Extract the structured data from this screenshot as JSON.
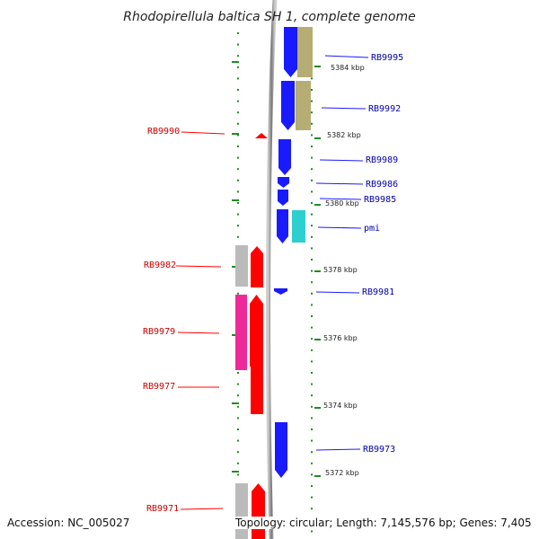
{
  "title": "Rhodopirellula baltica SH 1, complete genome",
  "accession_text": "Accession: NC_005027",
  "stats_text": "Topology: circular; Length: 7,145,576 bp; Genes: 7,405",
  "colors": {
    "forward": "#1a1aff",
    "reverse": "#ff0000",
    "forward_label": "#0000aa",
    "reverse_label": "#cc0000",
    "tick": "#228b22",
    "backbone": "#888888",
    "cog_olive": "#b5ad74",
    "cog_cyan": "#2ecfcf",
    "cog_grey": "#bbbbbb",
    "cog_magenta": "#ee2a9a"
  },
  "coordinates": [
    "5384 kbp",
    "5382 kbp",
    "5380 kbp",
    "5378 kbp",
    "5376 kbp",
    "5374 kbp",
    "5372 kbp"
  ],
  "forward_labels": [
    "RB9995",
    "RB9992",
    "RB9989",
    "RB9986",
    "RB9985",
    "pmi",
    "RB9981",
    "RB9973"
  ],
  "reverse_labels": [
    "RB9990",
    "RB9982",
    "RB9979",
    "RB9977",
    "RB9971"
  ]
}
